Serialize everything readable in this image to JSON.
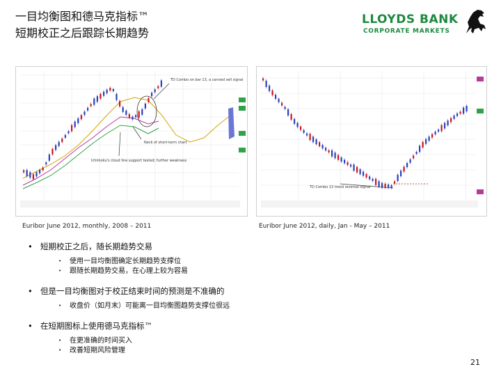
{
  "title": {
    "line1": "一目均衡图和德马克指标™",
    "line2": "短期校正之后跟踪长期趋势"
  },
  "logo": {
    "name": "LLOYDS BANK",
    "subtitle": "CORPORATE MARKETS"
  },
  "charts": {
    "left": {
      "caption": "Euribor June 2012, monthly, 2008 – 2011",
      "annotations": [
        "TD Combo on bar 13, a canned sell signal",
        "Neck of short-term chart",
        "Ichimoku's cloud line support tested; further weakness"
      ]
    },
    "right": {
      "caption": "Euribor June 2012, daily, Jan - May – 2011",
      "annotations": [
        "TD Combo 13 trend reversal signal"
      ]
    }
  },
  "bullets": [
    {
      "text": "短期校正之后，随长期趋势交易",
      "sub": [
        "使用一目均衡图确定长期趋势支撑位",
        "跟随长期趋势交易，在心理上较为容易"
      ]
    },
    {
      "text": "但是一目均衡图对于校正结束时间的预测是不准确的",
      "sub": [
        "收盘价（如月末）可能离一目均衡图趋势支撑位很远"
      ]
    },
    {
      "text": "在短期图标上使用德马克指标™",
      "sub": [
        "在更准确的时间买入",
        "改善短期风险管理"
      ]
    }
  ],
  "page_number": "21",
  "colors": {
    "brand_green": "#1c8a3e",
    "candle_up": "#2b3fb8",
    "candle_down": "#c9151b",
    "cloud": "#6a78d4"
  }
}
